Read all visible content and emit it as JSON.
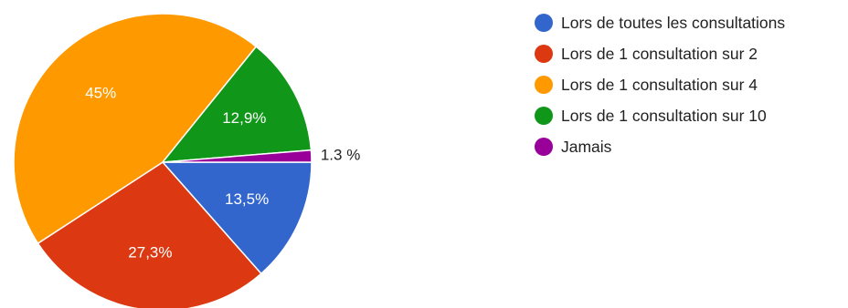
{
  "chart_data": {
    "type": "pie",
    "title": "",
    "legend_position": "right",
    "slices": [
      {
        "label": "Lors de toutes les consultations",
        "value": 13.5,
        "display": "13,5%",
        "color": "#3366cc",
        "label_style": "inside"
      },
      {
        "label": "Lors de 1 consultation sur 2",
        "value": 27.3,
        "display": "27,3%",
        "color": "#dc3912",
        "label_style": "inside"
      },
      {
        "label": "Lors de 1 consultation sur 4",
        "value": 45,
        "display": "45%",
        "color": "#ff9900",
        "label_style": "inside"
      },
      {
        "label": "Lors de 1 consultation sur 10",
        "value": 12.9,
        "display": "12,9%",
        "color": "#109618",
        "label_style": "inside"
      },
      {
        "label": "Jamais",
        "value": 1.3,
        "display": "1.3 %",
        "color": "#990099",
        "label_style": "outside"
      }
    ]
  }
}
